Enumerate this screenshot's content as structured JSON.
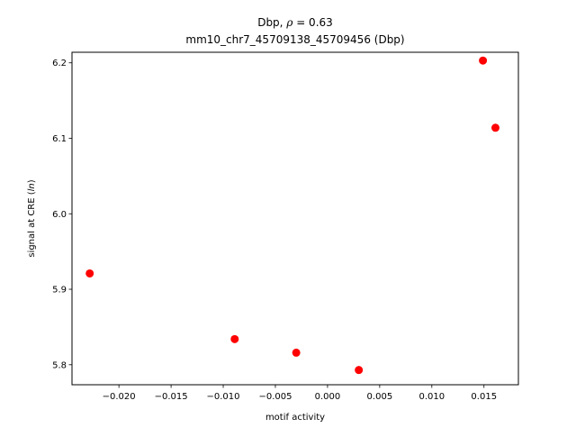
{
  "chart_data": {
    "type": "scatter",
    "title_prefix": "Dbp, ",
    "title_rho_symbol": "ρ",
    "title_rho_value": " = 0.63",
    "subtitle": "mm10_chr7_45709138_45709456 (Dbp)",
    "xlabel": "motif activity",
    "ylabel_prefix": "signal at CRE (",
    "ylabel_italic": "ln",
    "ylabel_suffix": ")",
    "xlim": [
      -0.0245,
      0.0183
    ],
    "ylim": [
      5.7735,
      6.214
    ],
    "x_ticks": [
      -0.02,
      -0.015,
      -0.01,
      -0.005,
      0.0,
      0.005,
      0.01,
      0.015
    ],
    "x_tick_labels": [
      "−0.020",
      "−0.015",
      "−0.010",
      "−0.005",
      "0.000",
      "0.005",
      "0.010",
      "0.015"
    ],
    "y_ticks": [
      5.8,
      5.9,
      6.0,
      6.1,
      6.2
    ],
    "y_tick_labels": [
      "5.8",
      "5.9",
      "6.0",
      "6.1",
      "6.2"
    ],
    "grid": false,
    "marker_color": "#ff0000",
    "points": [
      {
        "x": -0.0228,
        "y": 5.921
      },
      {
        "x": -0.0089,
        "y": 5.834
      },
      {
        "x": -0.003,
        "y": 5.816
      },
      {
        "x": 0.003,
        "y": 5.793
      },
      {
        "x": 0.0149,
        "y": 6.203
      },
      {
        "x": 0.0161,
        "y": 6.114
      }
    ]
  }
}
